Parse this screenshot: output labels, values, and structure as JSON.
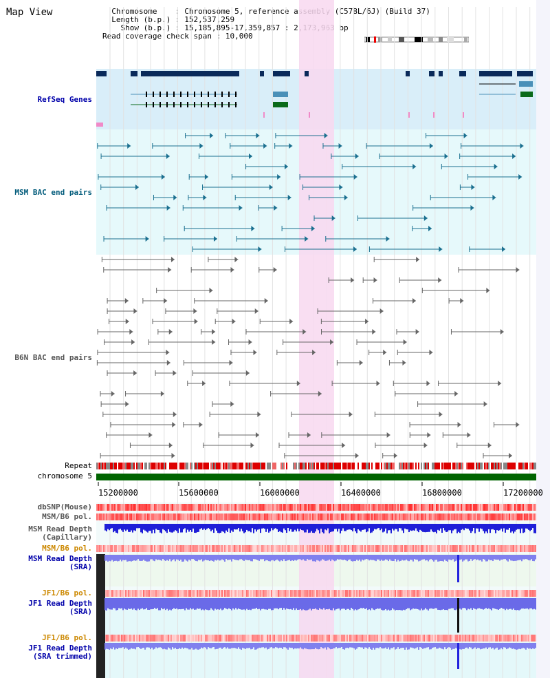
{
  "panel_title": "Map View",
  "info": {
    "chromosome_label": "Chromosome",
    "chromosome_value": "Chromosome 5, reference assembly (C57BL/6J) (Build 37)",
    "length_label": "Length (b.p.)",
    "length_value": "152,537,259",
    "show_label": "Show (b.p.)",
    "show_value": "15,185,895-17,359,857 : 2,173,963 bp",
    "coverage_label": "Read coverage check span",
    "coverage_value": "10,000"
  },
  "tracks": {
    "refseq": "RefSeq Genes",
    "msm_bac": "MSM BAC end pairs",
    "b6n_bac": "B6N BAC end pairs",
    "repeat": "Repeat",
    "chromosome": "chromosome 5",
    "dbsnp": "dbSNP(Mouse)",
    "msm_b6_pol_1": "MSM/B6 pol.",
    "msm_depth_cap_1": "MSM Read Depth",
    "msm_depth_cap_2": "(Capillary)",
    "msm_b6_pol_2": "MSM/B6 pol.",
    "msm_depth_sra_1": "MSM Read Depth",
    "msm_depth_sra_2": "(SRA)",
    "jf1_b6_pol_1": "JF1/B6 pol.",
    "jf1_depth_sra_1": "JF1 Read Depth",
    "jf1_depth_sra_2": "(SRA)",
    "jf1_b6_pol_2": "JF1/B6 pol.",
    "jf1_depth_trim_1": "JF1 Read Depth",
    "jf1_depth_trim_2": "(SRA trimmed)"
  },
  "axis": {
    "ticks": [
      "15200000",
      "15600000",
      "16000000",
      "16400000",
      "16800000",
      "17200000"
    ]
  },
  "colors": {
    "refseq_bg": "#d9eef9",
    "msm_bg": "#e6f9fb",
    "highlight": "#f8d8f0",
    "gene_dark": "#0a2a5a",
    "gene_mid": "#4a90b8",
    "gene_green": "#0a6a1a",
    "chrom_green": "#006400",
    "msm_label": "#005a7a",
    "refseq_label": "#0000aa",
    "orange_label": "#cc8800",
    "depth_blue": "#1f1fd8"
  }
}
